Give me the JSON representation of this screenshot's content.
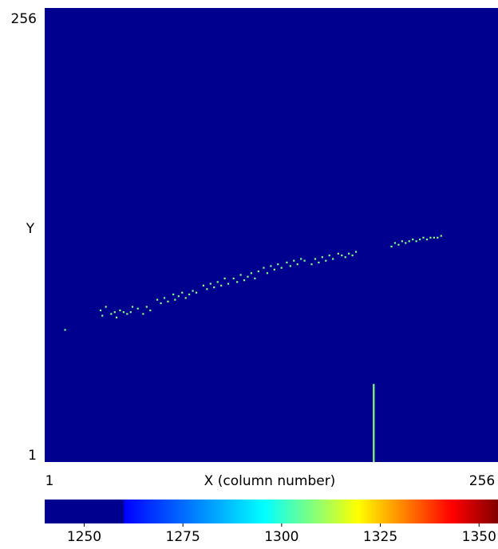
{
  "chart_data": {
    "type": "heatmap",
    "title": "",
    "xlabel": "X (column number)",
    "ylabel": "Y",
    "xlim": [
      1,
      256
    ],
    "ylim": [
      1,
      256
    ],
    "x_tick_labels": [
      "1",
      "256"
    ],
    "y_tick_labels": [
      "1",
      "256"
    ],
    "background_value": 1250,
    "background_color": "#00008f",
    "colormap": "jet",
    "colorbar": {
      "range": [
        1240,
        1355
      ],
      "tick_values": [
        1250,
        1275,
        1300,
        1325,
        1350
      ],
      "tick_labels": [
        "1250",
        "1275",
        "1300",
        "1325",
        "1350"
      ]
    },
    "track": {
      "value": 1300,
      "color": "#7fff7f",
      "points": [
        [
          12,
          75
        ],
        [
          32,
          86
        ],
        [
          33,
          83
        ],
        [
          35,
          88
        ],
        [
          38,
          84
        ],
        [
          40,
          85
        ],
        [
          41,
          82
        ],
        [
          43,
          86
        ],
        [
          45,
          85
        ],
        [
          47,
          84
        ],
        [
          49,
          85
        ],
        [
          50,
          88
        ],
        [
          53,
          87
        ],
        [
          56,
          84
        ],
        [
          58,
          88
        ],
        [
          60,
          86
        ],
        [
          64,
          92
        ],
        [
          66,
          90
        ],
        [
          68,
          93
        ],
        [
          70,
          91
        ],
        [
          73,
          95
        ],
        [
          74,
          92
        ],
        [
          76,
          94
        ],
        [
          78,
          96
        ],
        [
          80,
          93
        ],
        [
          82,
          95
        ],
        [
          84,
          97
        ],
        [
          86,
          96
        ],
        [
          90,
          100
        ],
        [
          92,
          98
        ],
        [
          94,
          101
        ],
        [
          96,
          99
        ],
        [
          98,
          102
        ],
        [
          100,
          100
        ],
        [
          102,
          104
        ],
        [
          104,
          101
        ],
        [
          107,
          104
        ],
        [
          109,
          102
        ],
        [
          111,
          106
        ],
        [
          113,
          103
        ],
        [
          115,
          105
        ],
        [
          117,
          107
        ],
        [
          119,
          104
        ],
        [
          121,
          108
        ],
        [
          124,
          110
        ],
        [
          126,
          107
        ],
        [
          128,
          111
        ],
        [
          130,
          109
        ],
        [
          132,
          112
        ],
        [
          134,
          110
        ],
        [
          137,
          113
        ],
        [
          139,
          111
        ],
        [
          141,
          114
        ],
        [
          143,
          112
        ],
        [
          145,
          115
        ],
        [
          147,
          114
        ],
        [
          151,
          112
        ],
        [
          153,
          115
        ],
        [
          155,
          113
        ],
        [
          157,
          116
        ],
        [
          159,
          114
        ],
        [
          161,
          117
        ],
        [
          163,
          115
        ],
        [
          166,
          118
        ],
        [
          168,
          117
        ],
        [
          170,
          116
        ],
        [
          172,
          118
        ],
        [
          174,
          117
        ],
        [
          176,
          119
        ],
        [
          196,
          122
        ],
        [
          198,
          124
        ],
        [
          200,
          123
        ],
        [
          202,
          125
        ],
        [
          204,
          124
        ],
        [
          206,
          125
        ],
        [
          208,
          126
        ],
        [
          210,
          125
        ],
        [
          212,
          126
        ],
        [
          214,
          127
        ],
        [
          216,
          126
        ],
        [
          218,
          127
        ],
        [
          220,
          127
        ],
        [
          222,
          127
        ],
        [
          224,
          128
        ]
      ]
    },
    "column_artifact": {
      "x": 186,
      "y_from": 1,
      "y_to": 44,
      "color": "#7fff7f"
    }
  }
}
